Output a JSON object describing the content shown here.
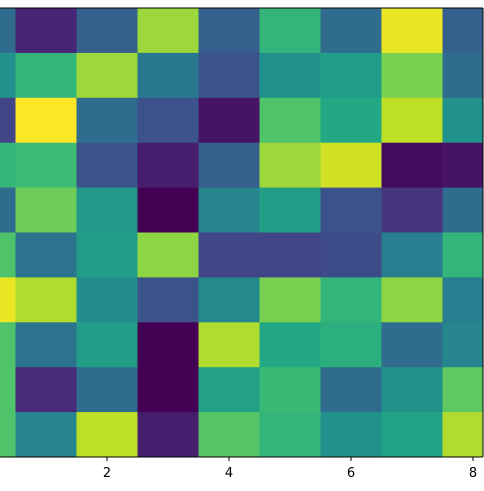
{
  "chart_data": {
    "type": "heatmap",
    "colormap": "viridis",
    "values": [
      [
        0.35,
        0.1,
        0.3,
        0.85,
        0.3,
        0.65,
        0.35,
        0.97,
        0.3
      ],
      [
        0.5,
        0.65,
        0.85,
        0.4,
        0.25,
        0.5,
        0.55,
        0.8,
        0.35
      ],
      [
        0.2,
        1.0,
        0.35,
        0.25,
        0.05,
        0.72,
        0.6,
        0.9,
        0.5
      ],
      [
        0.65,
        0.68,
        0.25,
        0.08,
        0.3,
        0.85,
        0.93,
        0.03,
        0.05
      ],
      [
        0.35,
        0.78,
        0.53,
        0.0,
        0.45,
        0.55,
        0.25,
        0.15,
        0.35
      ],
      [
        0.72,
        0.38,
        0.55,
        0.83,
        0.2,
        0.2,
        0.23,
        0.42,
        0.65
      ],
      [
        0.97,
        0.88,
        0.48,
        0.25,
        0.47,
        0.8,
        0.65,
        0.83,
        0.42
      ],
      [
        0.72,
        0.38,
        0.55,
        0.0,
        0.88,
        0.6,
        0.63,
        0.35,
        0.45
      ],
      [
        0.72,
        0.12,
        0.35,
        0.0,
        0.57,
        0.67,
        0.35,
        0.5,
        0.75
      ],
      [
        0.72,
        0.45,
        0.9,
        0.08,
        0.73,
        0.65,
        0.5,
        0.58,
        0.88
      ]
    ],
    "xlim": [
      0.246,
      8.164
    ],
    "ylim": [
      9.5,
      -0.5
    ],
    "xticks": [
      2,
      4,
      6,
      8
    ]
  }
}
